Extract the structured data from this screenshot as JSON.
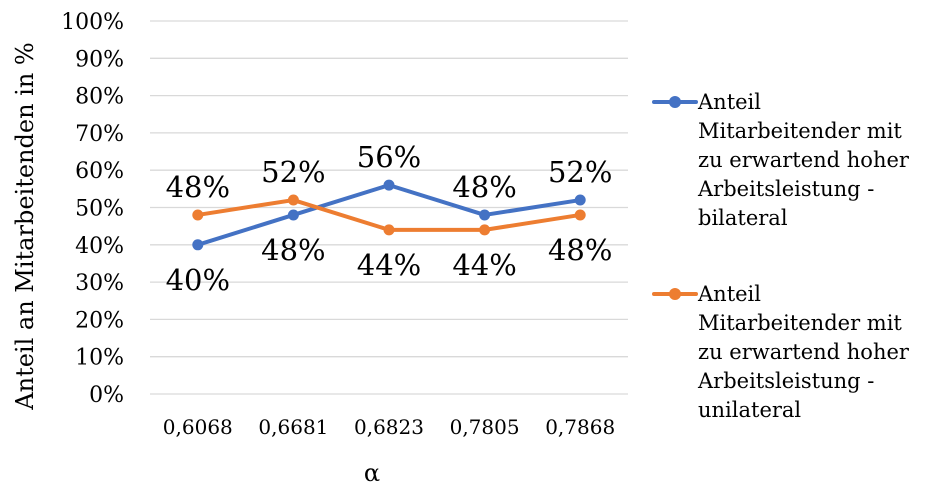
{
  "chart_data": {
    "type": "line",
    "title": "",
    "xlabel": "α",
    "ylabel": "Anteil an Mitarbeitenden in %",
    "categories": [
      "0,6068",
      "0,6681",
      "0,6823",
      "0,7805",
      "0,7868"
    ],
    "ylim": [
      0,
      100
    ],
    "yticks": [
      "0%",
      "10%",
      "20%",
      "30%",
      "40%",
      "50%",
      "60%",
      "70%",
      "80%",
      "90%",
      "100%"
    ],
    "grid": true,
    "legend_position": "right",
    "series": [
      {
        "name": "Anteil Mitarbeitender mit zu erwartend hoher Arbeitsleistung - bilateral",
        "color": "#4472C4",
        "values": [
          40,
          48,
          56,
          48,
          52
        ],
        "labels": [
          "40%",
          "48%",
          "56%",
          "48%",
          "52%"
        ],
        "label_side": [
          "below",
          "below",
          "above",
          "above",
          "above"
        ]
      },
      {
        "name": "Anteil Mitarbeitender mit zu erwartend hoher Arbeitsleistung - unilateral",
        "color": "#ED7D31",
        "values": [
          48,
          52,
          44,
          44,
          48
        ],
        "labels": [
          "48%",
          "52%",
          "44%",
          "44%",
          "48%"
        ],
        "label_side": [
          "above",
          "above",
          "below",
          "below",
          "below"
        ]
      }
    ]
  }
}
